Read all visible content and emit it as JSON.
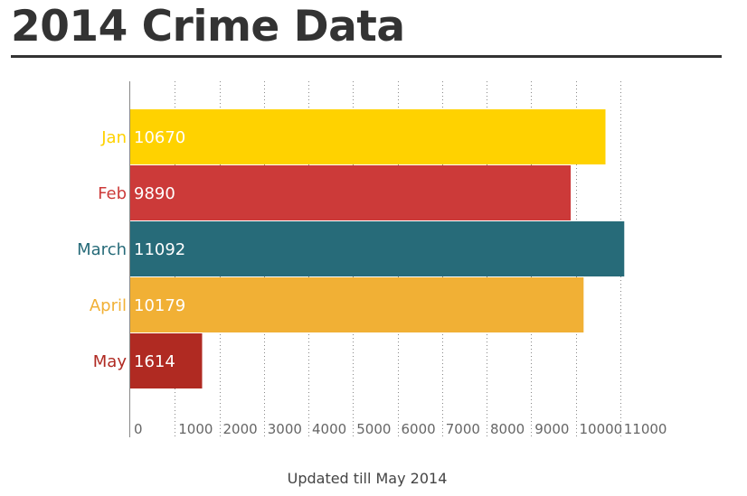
{
  "title": "2014 Crime Data",
  "footnote": "Updated till May 2014",
  "colors": {
    "title": "#333333",
    "axis": "#888888",
    "grid": "#888888",
    "tick_text": "#666666",
    "Jan": "#FFD200",
    "Feb": "#CC3A39",
    "March": "#276B79",
    "April": "#F1B035",
    "May": "#B02A22"
  },
  "chart_data": {
    "type": "bar",
    "orientation": "horizontal",
    "categories": [
      "Jan",
      "Feb",
      "March",
      "April",
      "May"
    ],
    "values": [
      10670,
      9890,
      11092,
      10179,
      1614
    ],
    "value_labels": [
      "10670",
      "9890",
      "11092",
      "10179",
      "1614"
    ],
    "xlim": [
      0,
      11000
    ],
    "x_ticks": [
      0,
      1000,
      2000,
      3000,
      4000,
      5000,
      6000,
      7000,
      8000,
      9000,
      10000,
      11000
    ],
    "x_tick_labels": [
      "0",
      "1000",
      "2000",
      "3000",
      "4000",
      "5000",
      "6000",
      "7000",
      "8000",
      "9000",
      "10000",
      "11000"
    ],
    "grid": true,
    "grid_style": "dotted",
    "legend": "none"
  }
}
